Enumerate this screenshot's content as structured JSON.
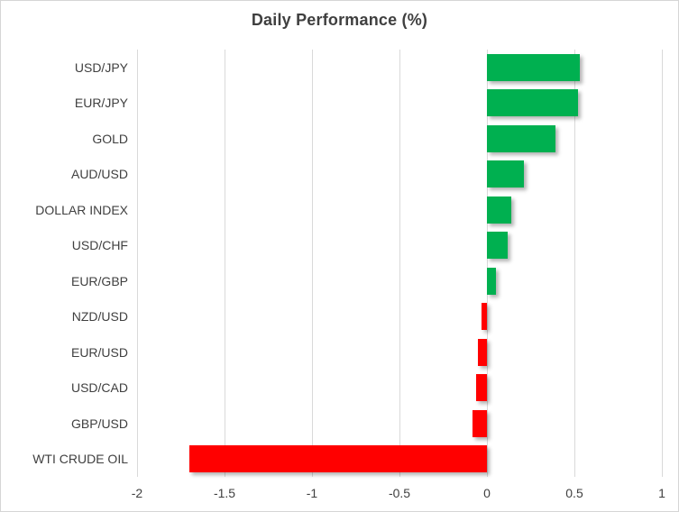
{
  "chart_data": {
    "type": "bar",
    "orientation": "horizontal",
    "title": "Daily Performance (%)",
    "categories": [
      "USD/JPY",
      "EUR/JPY",
      "GOLD",
      "AUD/USD",
      "DOLLAR INDEX",
      "USD/CHF",
      "EUR/GBP",
      "NZD/USD",
      "EUR/USD",
      "USD/CAD",
      "GBP/USD",
      "WTI CRUDE OIL"
    ],
    "values": [
      0.53,
      0.52,
      0.39,
      0.21,
      0.14,
      0.12,
      0.05,
      -0.03,
      -0.05,
      -0.06,
      -0.08,
      -1.7
    ],
    "xlabel": "",
    "ylabel": "",
    "xlim": [
      -2,
      1
    ],
    "xticks": [
      -2,
      -1.5,
      -1,
      -0.5,
      0,
      0.5,
      1
    ],
    "xtick_labels": [
      "-2",
      "-1.5",
      "-1",
      "-0.5",
      "0",
      "0.5",
      "1"
    ],
    "grid": "vertical-gridlines-on",
    "legend": "none",
    "colors": {
      "positive_bar": "#00B050",
      "negative_bar": "#FF0000",
      "gridline": "#D9D9D9",
      "axis_text": "#404040",
      "title_text": "#3F3F3F",
      "chart_border": "#D6D6D6",
      "background": "#FFFFFF"
    }
  }
}
